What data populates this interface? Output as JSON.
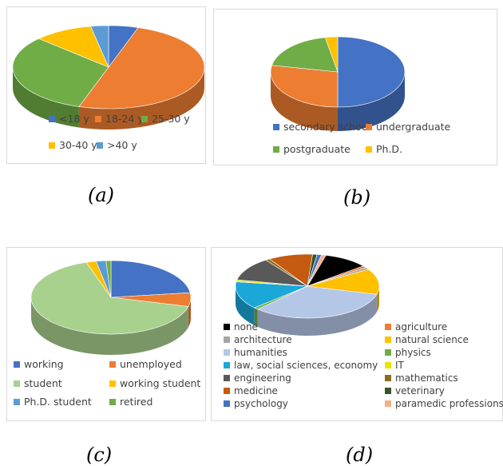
{
  "captions": {
    "a": "(a)",
    "b": "(b)",
    "c": "(c)",
    "d": "(d)"
  },
  "chart_data": [
    {
      "type": "pie",
      "id": "a",
      "categories": [
        "<18 y",
        "18-24 y",
        "25-30 y",
        "30-40 y",
        ">40 y"
      ],
      "values": [
        5,
        50,
        32,
        10,
        3
      ],
      "colors": [
        "#4472c4",
        "#ed7d31",
        "#70ad47",
        "#ffc000",
        "#5b9bd5"
      ],
      "legend_placement": "bottom"
    },
    {
      "type": "pie",
      "id": "b",
      "categories": [
        "secondary school",
        "undergraduate",
        "postgraduate",
        "Ph.D."
      ],
      "values": [
        50,
        28,
        19,
        3
      ],
      "colors": [
        "#4472c4",
        "#ed7d31",
        "#70ad47",
        "#ffc000"
      ],
      "legend_placement": "bottom"
    },
    {
      "type": "pie",
      "id": "c",
      "categories": [
        "working",
        "unemployed",
        "student",
        "working student",
        "Ph.D. student",
        "retired"
      ],
      "values": [
        23,
        6,
        66,
        2,
        2,
        1
      ],
      "colors": [
        "#4472c4",
        "#ed7d31",
        "#a9d18e",
        "#ffc000",
        "#5b9bd5",
        "#70ad47"
      ],
      "legend_placement": "bottom"
    },
    {
      "type": "pie",
      "id": "d",
      "categories": [
        "none",
        "agriculture",
        "architecture",
        "natural science",
        "humanities",
        "physics",
        "law, social sciences, economy",
        "IT",
        "engineering",
        "mathematics",
        "medicine",
        "veterinary",
        "psychology",
        "paramedic professions"
      ],
      "values": [
        10,
        1,
        1,
        13,
        33,
        1,
        14,
        1,
        12,
        1,
        10,
        1,
        1,
        1
      ],
      "colors": [
        "#000000",
        "#ed7d31",
        "#a5a5a5",
        "#ffc000",
        "#b4c7e7",
        "#70ad47",
        "#1ca7d9",
        "#e6e600",
        "#595959",
        "#8c6d1f",
        "#c55a11",
        "#375623",
        "#4472c4",
        "#f4b183"
      ],
      "legend_placement": "bottom"
    }
  ]
}
